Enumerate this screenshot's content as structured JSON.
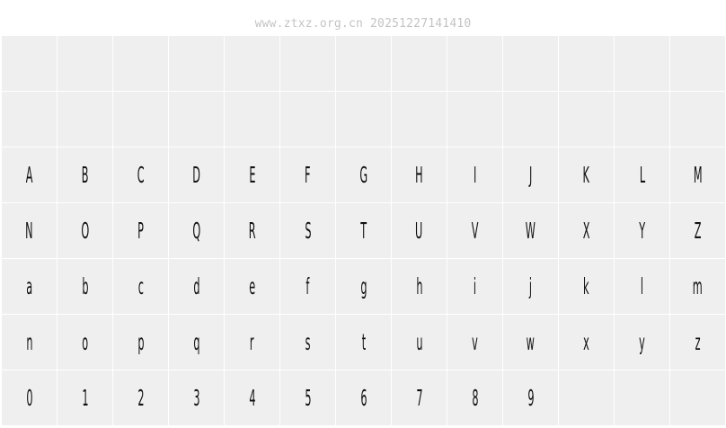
{
  "header": {
    "watermark": "www.ztxz.org.cn 20251227141410"
  },
  "grid": {
    "rows": [
      [
        "",
        "",
        "",
        "",
        "",
        "",
        "",
        "",
        "",
        "",
        "",
        "",
        ""
      ],
      [
        "",
        "",
        "",
        "",
        "",
        "",
        "",
        "",
        "",
        "",
        "",
        "",
        ""
      ],
      [
        "A",
        "B",
        "C",
        "D",
        "E",
        "F",
        "G",
        "H",
        "I",
        "J",
        "K",
        "L",
        "M"
      ],
      [
        "N",
        "O",
        "P",
        "Q",
        "R",
        "S",
        "T",
        "U",
        "V",
        "W",
        "X",
        "Y",
        "Z"
      ],
      [
        "a",
        "b",
        "c",
        "d",
        "e",
        "f",
        "g",
        "h",
        "i",
        "j",
        "k",
        "l",
        "m"
      ],
      [
        "n",
        "o",
        "p",
        "q",
        "r",
        "s",
        "t",
        "u",
        "v",
        "w",
        "x",
        "y",
        "z"
      ],
      [
        "0",
        "1",
        "2",
        "3",
        "4",
        "5",
        "6",
        "7",
        "8",
        "9",
        "",
        "",
        ""
      ]
    ]
  },
  "colors": {
    "cell_background": "#efefef",
    "grid_lines": "#ffffff",
    "glyph": "#111111",
    "watermark": "#c4c4c4"
  }
}
